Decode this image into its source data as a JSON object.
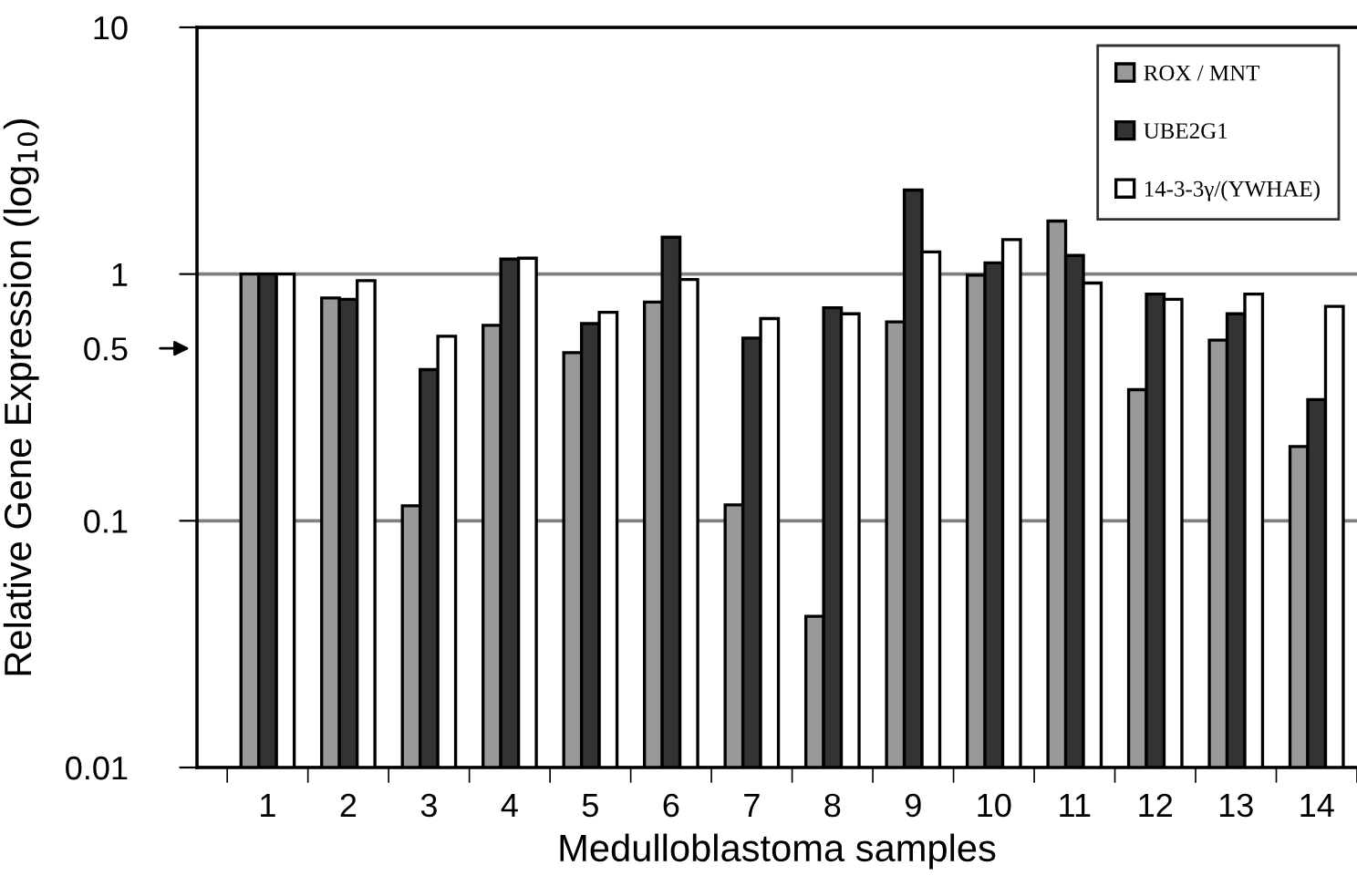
{
  "chart_data": {
    "type": "bar",
    "xlabel": "Medulloblastoma samples",
    "ylabel": "Relative Gene Expression (log$_{10}$)",
    "categories": [
      "1",
      "2",
      "3",
      "4",
      "5",
      "6",
      "7",
      "8",
      "9",
      "10",
      "11",
      "12",
      "13",
      "14"
    ],
    "series": [
      {
        "name": "ROX / MNT",
        "color": "#999999",
        "values": [
          1,
          0.8,
          0.115,
          0.62,
          0.48,
          0.77,
          0.116,
          0.041,
          0.64,
          0.99,
          1.64,
          0.34,
          0.54,
          0.2
        ]
      },
      {
        "name": "UBE2G1",
        "color": "#333333",
        "values": [
          1,
          0.79,
          0.41,
          1.15,
          0.63,
          1.41,
          0.55,
          0.73,
          2.19,
          1.11,
          1.19,
          0.83,
          0.69,
          0.31
        ]
      },
      {
        "name": "14-3-3γ/(YWHAE)",
        "color": "#ffffff",
        "values": [
          1,
          0.94,
          0.56,
          1.16,
          0.7,
          0.95,
          0.66,
          0.69,
          1.23,
          1.38,
          0.92,
          0.79,
          0.83,
          0.74
        ]
      }
    ],
    "log": "y",
    "ylim": [
      0.01,
      10
    ],
    "yticks": [
      0.01,
      0.1,
      1,
      10,
      {
        "value": 0.5,
        "label": "0.5"
      }
    ],
    "grid": "y",
    "legend": "top right"
  }
}
